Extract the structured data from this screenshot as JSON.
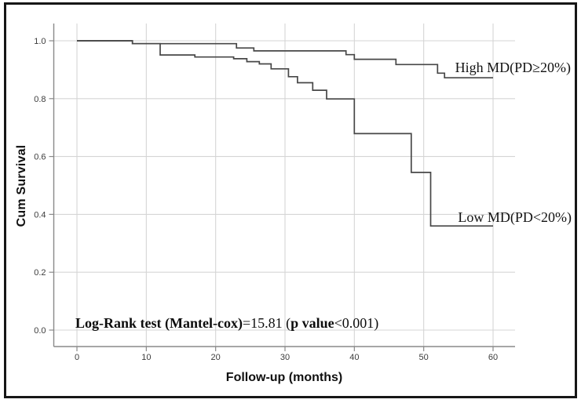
{
  "figure": {
    "background": "#ffffff",
    "frame_color": "#161616"
  },
  "chart_data": {
    "type": "line",
    "subtype": "kaplan-meier-step-curves",
    "title": "",
    "xlabel": "Follow-up (months)",
    "ylabel": "Cum Survival",
    "xlim": [
      0,
      60
    ],
    "ylim": [
      0.0,
      1.0
    ],
    "x_ticks": [
      0,
      10,
      20,
      30,
      40,
      50,
      60
    ],
    "y_tick_labels": [
      "0.0",
      "0.2",
      "0.4",
      "0.6",
      "0.8",
      "1.0"
    ],
    "grid": true,
    "legend_position": "labels-on-plot-right",
    "series": [
      {
        "name": "High MD(PD≥20%)",
        "label": "High MD(PD≥20%)",
        "steps": [
          [
            0,
            1.0
          ],
          [
            8,
            0.99
          ],
          [
            23,
            0.975
          ],
          [
            25.5,
            0.965
          ],
          [
            38.8,
            0.952
          ],
          [
            40,
            0.936
          ],
          [
            46,
            0.918
          ],
          [
            52,
            0.888
          ],
          [
            53,
            0.872
          ],
          [
            60,
            0.872
          ]
        ]
      },
      {
        "name": "Low MD(PD<20%)",
        "label": "Low MD(PD<20%)",
        "steps": [
          [
            0,
            1.0
          ],
          [
            8,
            0.99
          ],
          [
            12,
            0.951
          ],
          [
            17,
            0.944
          ],
          [
            22.6,
            0.938
          ],
          [
            24.5,
            0.928
          ],
          [
            26.3,
            0.92
          ],
          [
            28,
            0.903
          ],
          [
            30.5,
            0.876
          ],
          [
            31.8,
            0.855
          ],
          [
            34,
            0.829
          ],
          [
            36,
            0.799
          ],
          [
            40,
            0.679
          ],
          [
            48.2,
            0.545
          ],
          [
            51,
            0.36
          ],
          [
            60,
            0.36
          ]
        ]
      }
    ],
    "annotation": "Log-Rank test (Mantel-cox)=15.81 (p value<0.001)",
    "annotation_segments": [
      {
        "text": "Log-Rank test (Mantel-cox)",
        "bold": true
      },
      {
        "text": "=15.81 (",
        "bold": false
      },
      {
        "text": "p value",
        "bold": true
      },
      {
        "text": "<0.001)",
        "bold": false
      }
    ],
    "colors": {
      "curve": "#474747",
      "grid": "#d5d5d5",
      "axis": "#898989",
      "tick_text": "#3c3c3c",
      "label_text": "#131313"
    }
  }
}
